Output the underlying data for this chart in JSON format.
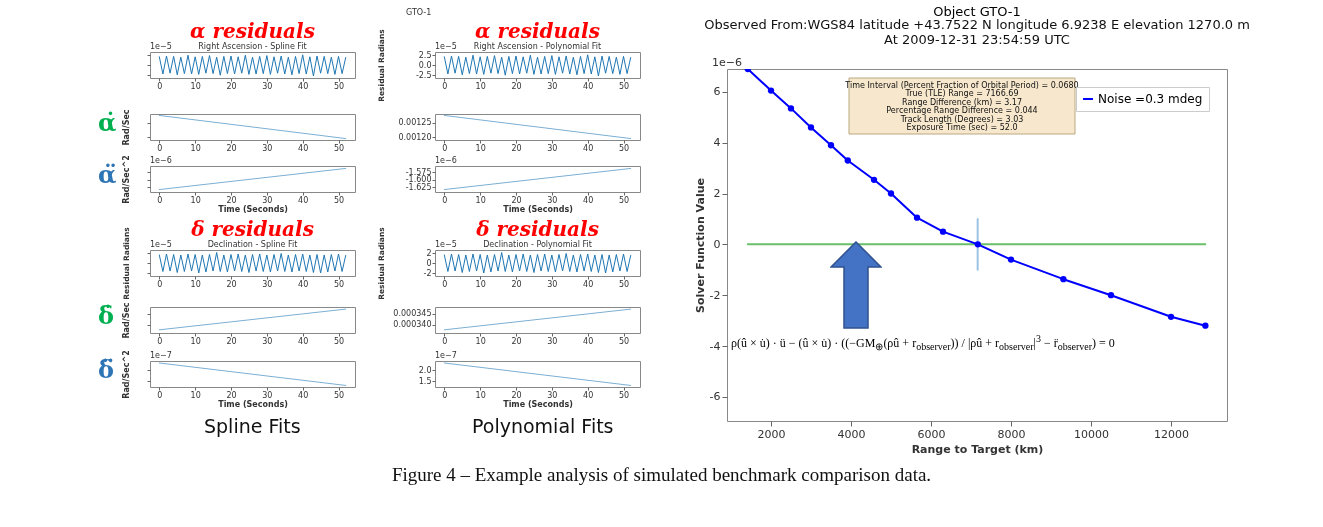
{
  "chart_data": [
    {
      "type": "line",
      "title": "α residuals",
      "subtitle": "Right Ascension - Spline Fit",
      "x": [
        0,
        1,
        2,
        3,
        4,
        5,
        6,
        7,
        8,
        9,
        10,
        11,
        12,
        13,
        14,
        15,
        16,
        17,
        18,
        19,
        20,
        21,
        22,
        23,
        24,
        25,
        26,
        27,
        28,
        29,
        30,
        31,
        32,
        33,
        34,
        35,
        36,
        37,
        38,
        39,
        40,
        41,
        42,
        43,
        44,
        45,
        46,
        47,
        48,
        49,
        50,
        51,
        52
      ],
      "series": [
        {
          "color": "#1f77b4",
          "values": [
            2.1,
            -2.2,
            2.3,
            -2.0,
            2.2,
            -2.4,
            2.0,
            -2.1,
            2.5,
            -2.2,
            2.1,
            -2.3,
            2.2,
            -2.0,
            2.4,
            -2.1,
            2.0,
            -2.5,
            2.2,
            -2.1,
            2.3,
            -2.2,
            2.1,
            -2.0,
            2.5,
            -2.3,
            2.0,
            -2.2,
            2.2,
            -2.1,
            2.4,
            -2.3,
            2.1,
            -2.0,
            2.3,
            -2.2,
            2.0,
            -2.4,
            2.2,
            -2.1,
            2.6,
            -2.2,
            2.1,
            -2.7,
            2.3,
            -2.0,
            2.2,
            -2.1,
            2.0,
            -2.3,
            2.2,
            -2.1,
            1.9
          ]
        }
      ],
      "xlim": [
        -2.6,
        54.6
      ],
      "xticks": [
        0,
        10,
        20,
        30,
        40,
        50
      ],
      "ylim": [
        -3.2,
        3.3
      ],
      "yticks": [
        -2.5,
        0,
        2.5
      ],
      "tick_labels": "x",
      "annotations": [
        "1e−5",
        "GTO-1"
      ]
    },
    {
      "type": "line",
      "ylabel": "Rad/Sec",
      "x": [
        0,
        52
      ],
      "series": [
        {
          "color": "#7bafd4",
          "values": [
            0.001275,
            0.001195
          ]
        }
      ],
      "xlim": [
        -2.6,
        54.6
      ],
      "xticks": [
        0,
        10,
        20,
        30,
        40,
        50
      ],
      "ylim": [
        0.00119,
        0.00128
      ],
      "yticks": [
        0.0012,
        0.00125
      ],
      "tick_labels": "x",
      "annotations": [
        "α̇"
      ]
    },
    {
      "type": "line",
      "ylabel": "Rad/Sec^2",
      "xlabel": "Time (Seconds)",
      "x": [
        0,
        52
      ],
      "series": [
        {
          "color": "#7bafd4",
          "values": [
            -1.632,
            -1.563
          ]
        }
      ],
      "xlim": [
        -2.6,
        54.6
      ],
      "xticks": [
        0,
        10,
        20,
        30,
        40,
        50
      ],
      "ylim": [
        -1.64,
        -1.555
      ],
      "yticks": [
        -1.625,
        -1.6,
        -1.575
      ],
      "tick_labels": "x",
      "annotations": [
        "α̈",
        "1e−6"
      ]
    },
    {
      "type": "line",
      "title": "δ residuals",
      "subtitle": "Declination - Spline Fit",
      "ylabel": "Residual Radians",
      "x": [
        0,
        1,
        2,
        3,
        4,
        5,
        6,
        7,
        8,
        9,
        10,
        11,
        12,
        13,
        14,
        15,
        16,
        17,
        18,
        19,
        20,
        21,
        22,
        23,
        24,
        25,
        26,
        27,
        28,
        29,
        30,
        31,
        32,
        33,
        34,
        35,
        36,
        37,
        38,
        39,
        40,
        41,
        42,
        43,
        44,
        45,
        46,
        47,
        48,
        49,
        50,
        51,
        52
      ],
      "series": [
        {
          "color": "#1f77b4",
          "values": [
            1.6,
            -1.7,
            1.8,
            -1.6,
            1.7,
            -1.9,
            1.6,
            -1.7,
            1.8,
            -1.6,
            1.7,
            -2.0,
            1.6,
            -1.8,
            1.7,
            -1.6,
            2.1,
            -1.7,
            1.6,
            -1.8,
            1.7,
            -1.6,
            1.8,
            -1.7,
            1.6,
            -1.9,
            1.7,
            -1.6,
            1.8,
            -1.7,
            1.6,
            -1.8,
            1.7,
            -1.6,
            1.9,
            -1.7,
            1.6,
            -1.8,
            1.7,
            -1.6,
            1.8,
            -1.7,
            1.6,
            -1.9,
            1.7,
            -2.0,
            1.6,
            -1.8,
            1.7,
            -1.6,
            1.8,
            -1.7,
            1.5
          ]
        }
      ],
      "xlim": [
        -2.6,
        54.6
      ],
      "xticks": [
        0,
        10,
        20,
        30,
        40,
        50
      ],
      "ylim": [
        -2.6,
        2.6
      ],
      "yticks": [
        -2,
        0,
        2
      ],
      "tick_labels": "x",
      "annotations": [
        "1e−5"
      ]
    },
    {
      "type": "line",
      "ylabel": "Rad/Sec",
      "x": [
        0,
        52
      ],
      "series": [
        {
          "color": "#7bafd4",
          "values": [
            0.0003375,
            0.0003473
          ]
        }
      ],
      "xlim": [
        -2.6,
        54.6
      ],
      "xticks": [
        0,
        10,
        20,
        30,
        40,
        50
      ],
      "ylim": [
        0.000336,
        0.0003483
      ],
      "yticks": [
        0.00034,
        0.000345
      ],
      "tick_labels": "x",
      "annotations": [
        "δ̇"
      ]
    },
    {
      "type": "line",
      "ylabel": "Rad/Sec^2",
      "xlabel": "Time (Seconds)",
      "x": [
        0,
        52
      ],
      "series": [
        {
          "color": "#7bafd4",
          "values": [
            2.33,
            1.32
          ]
        }
      ],
      "xlim": [
        -2.6,
        54.6
      ],
      "xticks": [
        0,
        10,
        20,
        30,
        40,
        50
      ],
      "ylim": [
        1.25,
        2.42
      ],
      "yticks": [
        1.5,
        2
      ],
      "tick_labels": "x",
      "annotations": [
        "δ̈",
        "1e−7",
        "Spline Fits"
      ]
    },
    {
      "type": "line",
      "title": "α residuals",
      "subtitle": "Right Ascension - Polynomial Fit",
      "ylabel": "Residual Radians",
      "x": [
        0,
        1,
        2,
        3,
        4,
        5,
        6,
        7,
        8,
        9,
        10,
        11,
        12,
        13,
        14,
        15,
        16,
        17,
        18,
        19,
        20,
        21,
        22,
        23,
        24,
        25,
        26,
        27,
        28,
        29,
        30,
        31,
        32,
        33,
        34,
        35,
        36,
        37,
        38,
        39,
        40,
        41,
        42,
        43,
        44,
        45,
        46,
        47,
        48,
        49,
        50,
        51,
        52
      ],
      "series": [
        {
          "color": "#1f77b4",
          "values": [
            2.1,
            -2.2,
            2.3,
            -2.0,
            2.2,
            -2.4,
            2.0,
            -2.1,
            2.5,
            -2.2,
            2.1,
            -2.3,
            2.2,
            -2.0,
            2.4,
            -2.1,
            2.0,
            -2.5,
            2.2,
            -2.1,
            2.3,
            -2.2,
            2.1,
            -2.0,
            2.5,
            -2.3,
            2.0,
            -2.2,
            2.2,
            -2.1,
            2.4,
            -2.3,
            2.1,
            -2.0,
            2.3,
            -2.2,
            2.0,
            -2.4,
            2.2,
            -2.1,
            2.6,
            -2.2,
            2.1,
            -2.7,
            2.3,
            -2.0,
            2.2,
            -2.1,
            2.0,
            -2.3,
            2.2,
            -2.1,
            1.9
          ]
        }
      ],
      "xlim": [
        -2.6,
        54.6
      ],
      "xticks": [
        0,
        10,
        20,
        30,
        40,
        50
      ],
      "ylim": [
        -3.2,
        3.3
      ],
      "yticks": [
        -2.5,
        {
          "value": 0,
          "label": "0.0"
        },
        2.5
      ],
      "annotations": [
        "1e−5"
      ]
    },
    {
      "type": "line",
      "x": [
        0,
        52
      ],
      "series": [
        {
          "color": "#7bafd4",
          "values": [
            0.001275,
            0.001195
          ]
        }
      ],
      "xlim": [
        -2.6,
        54.6
      ],
      "xticks": [
        0,
        10,
        20,
        30,
        40,
        50
      ],
      "ylim": [
        0.00119,
        0.00128
      ],
      "yticks": [
        {
          "value": 0.0012,
          "label": "0.00120"
        },
        0.00125
      ]
    },
    {
      "type": "line",
      "xlabel": "Time (Seconds)",
      "x": [
        0,
        52
      ],
      "series": [
        {
          "color": "#7bafd4",
          "values": [
            -1.632,
            -1.563
          ]
        }
      ],
      "xlim": [
        -2.6,
        54.6
      ],
      "xticks": [
        0,
        10,
        20,
        30,
        40,
        50
      ],
      "ylim": [
        -1.64,
        -1.555
      ],
      "yticks": [
        -1.625,
        {
          "value": -1.6,
          "label": "-1.600"
        },
        -1.575
      ],
      "annotations": [
        "1e−6"
      ]
    },
    {
      "type": "line",
      "title": "δ residuals",
      "subtitle": "Declination - Polynomial Fit",
      "ylabel": "Residual Radians",
      "x": [
        0,
        1,
        2,
        3,
        4,
        5,
        6,
        7,
        8,
        9,
        10,
        11,
        12,
        13,
        14,
        15,
        16,
        17,
        18,
        19,
        20,
        21,
        22,
        23,
        24,
        25,
        26,
        27,
        28,
        29,
        30,
        31,
        32,
        33,
        34,
        35,
        36,
        37,
        38,
        39,
        40,
        41,
        42,
        43,
        44,
        45,
        46,
        47,
        48,
        49,
        50,
        51,
        52
      ],
      "series": [
        {
          "color": "#1f77b4",
          "values": [
            1.6,
            -1.7,
            1.8,
            -1.6,
            1.7,
            -1.9,
            1.6,
            -1.7,
            1.8,
            -1.6,
            1.7,
            -2.0,
            1.6,
            -1.8,
            1.7,
            -1.6,
            2.1,
            -1.7,
            1.6,
            -1.8,
            1.7,
            -1.6,
            1.8,
            -1.7,
            1.6,
            -1.9,
            1.7,
            -1.6,
            1.8,
            -1.7,
            1.6,
            -1.8,
            1.7,
            -1.6,
            1.9,
            -1.7,
            1.6,
            -1.8,
            1.7,
            -1.6,
            1.8,
            -1.7,
            1.6,
            -1.9,
            1.7,
            -2.0,
            1.6,
            -1.8,
            1.7,
            -1.6,
            1.8,
            -1.7,
            1.5
          ]
        }
      ],
      "xlim": [
        -2.6,
        54.6
      ],
      "xticks": [
        0,
        10,
        20,
        30,
        40,
        50
      ],
      "ylim": [
        -2.6,
        2.6
      ],
      "yticks": [
        -2,
        0,
        2
      ],
      "annotations": [
        "1e−5"
      ]
    },
    {
      "type": "line",
      "x": [
        0,
        52
      ],
      "series": [
        {
          "color": "#7bafd4",
          "values": [
            0.0003375,
            0.0003473
          ]
        }
      ],
      "xlim": [
        -2.6,
        54.6
      ],
      "xticks": [
        0,
        10,
        20,
        30,
        40,
        50
      ],
      "ylim": [
        0.000336,
        0.0003483
      ],
      "yticks": [
        {
          "value": 0.00034,
          "label": "0.000340"
        },
        0.000345
      ]
    },
    {
      "type": "line",
      "xlabel": "Time (Seconds)",
      "x": [
        0,
        52
      ],
      "series": [
        {
          "color": "#7bafd4",
          "values": [
            2.33,
            1.32
          ]
        }
      ],
      "xlim": [
        -2.6,
        54.6
      ],
      "xticks": [
        0,
        10,
        20,
        30,
        40,
        50
      ],
      "ylim": [
        1.25,
        2.42
      ],
      "yticks": [
        1.5,
        {
          "value": 2,
          "label": "2.0"
        }
      ],
      "annotations": [
        "1e−7",
        "Polynomial Fits"
      ]
    },
    {
      "type": "line",
      "title": "Object GTO-1",
      "subtitle": "Observed From:WGS84 latitude +43.7522 N longitude 6.9238 E elevation 1270.0 m\nAt 2009-12-31 23:54:59 UTC",
      "xlabel": "Range to Target (km)",
      "ylabel": "Solver Function Value",
      "legend": "top right",
      "xlim": [
        900,
        13400
      ],
      "xticks": [
        2000,
        4000,
        6000,
        8000,
        10000,
        12000
      ],
      "ylim": [
        -6.95,
        6.9
      ],
      "yticks": [
        -6,
        -4,
        -2,
        0,
        2,
        4,
        6
      ],
      "series": [
        {
          "name": "Noise =0.3 mdeg",
          "color": "#0000ff",
          "marker": "circle",
          "x": [
            1420,
            2000,
            2500,
            3000,
            3500,
            3920,
            4575,
            5000,
            5650,
            6300,
            7170,
            8000,
            9310,
            10500,
            12000,
            12860
          ],
          "values": [
            6.9,
            6.05,
            5.35,
            4.6,
            3.9,
            3.3,
            2.54,
            2.0,
            1.05,
            0.5,
            0,
            -0.6,
            -1.37,
            -2.0,
            -2.85,
            -3.2
          ]
        },
        {
          "color": "#6abf69",
          "x": [
            1420,
            12860
          ],
          "values": [
            0,
            0
          ]
        },
        {
          "color": "#9cc3e4",
          "x": [
            7166.69,
            7166.69
          ],
          "values": [
            -1,
            1
          ]
        }
      ],
      "annotations": [
        "Time Interval (Percent Fraction of Orbital Period) = 0.0680",
        "True (TLE) Range = 7166.69",
        "Range Difference (km) = 3.17",
        "Percentage Range Difference = 0.044",
        "Track Length (Degrees) = 3.03",
        "Exposure Time (sec) = 52.0",
        "ρ(û × u̇) · ü − (û × u̇) · ((−GM$_{⊕}$(ρû + r$_{observer}$)) / |ρû + r$_{observer}$|$^{3}$ − r̈$_{observer}$) = 0",
        "1e−6",
        "Figure 4 – Example analysis of simulated benchmark comparison data."
      ]
    }
  ]
}
